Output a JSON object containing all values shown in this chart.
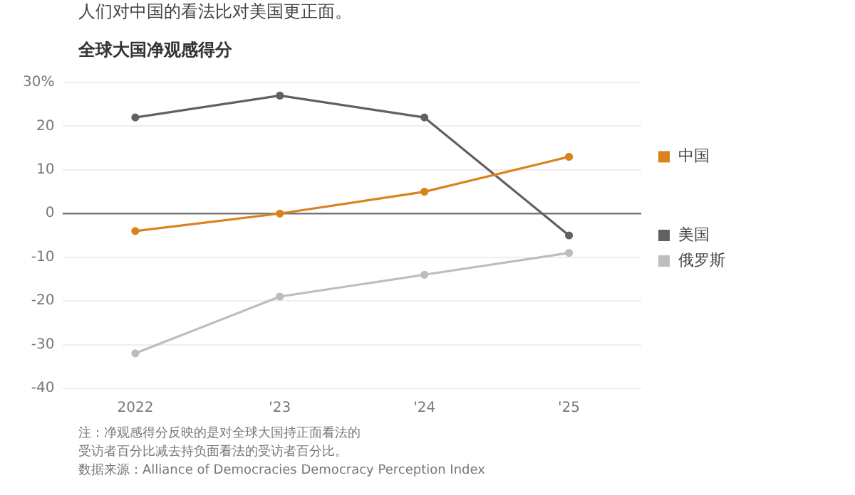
{
  "chart_data": {
    "type": "line",
    "title": "人们对中国的看法比对美国更正面。",
    "subtitle": "全球大国净观感得分",
    "categories": [
      "2022",
      "'23",
      "'24",
      "'25"
    ],
    "series": [
      {
        "name": "中国",
        "color": "#d9821e",
        "values": [
          -4,
          0,
          5,
          13
        ]
      },
      {
        "name": "美国",
        "color": "#616161",
        "values": [
          22,
          27,
          22,
          -5
        ]
      },
      {
        "name": "俄罗斯",
        "color": "#bdbdbd",
        "values": [
          -32,
          -19,
          -14,
          -9
        ]
      }
    ],
    "ylim": [
      -40,
      30
    ],
    "yticks": [
      -40,
      -30,
      -20,
      -10,
      0,
      10,
      20,
      {
        "value": 30,
        "label": "30%"
      }
    ],
    "grid": "y",
    "legend": "right",
    "marker": "circle",
    "line_style": "solid",
    "annotations": [
      "注：净观感得分反映的是对全球大国持正面看法的受访者百分比减去持负面看法的受访者百分比。",
      "数据来源：Alliance of Democracies Democracy Perception Index"
    ]
  }
}
